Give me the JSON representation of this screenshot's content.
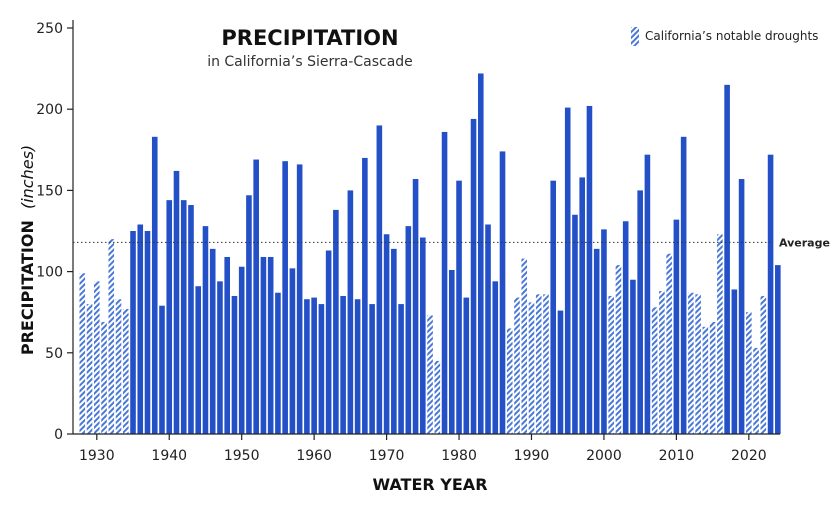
{
  "colors": {
    "bar": "#2450c7",
    "drought_stripe": "#4a78d6",
    "axis": "#222222",
    "average_line": "#333333"
  },
  "chart_data": {
    "type": "bar",
    "title": "PRECIPITATION",
    "subtitle": "in California’s Sierra-Cascade",
    "xlabel": "WATER YEAR",
    "ylabel": "PRECIPITATION",
    "ylabel_unit": "(inches)",
    "ylim": [
      0,
      250
    ],
    "yticks": [
      0,
      50,
      100,
      150,
      200,
      250
    ],
    "xticks": [
      1930,
      1940,
      1950,
      1960,
      1970,
      1980,
      1990,
      2000,
      2010,
      2020
    ],
    "average": 118,
    "average_label": "Average",
    "legend": {
      "label": "California’s notable droughts",
      "placement": "top-right"
    },
    "years": [
      1928,
      1929,
      1930,
      1931,
      1932,
      1933,
      1934,
      1935,
      1936,
      1937,
      1938,
      1939,
      1940,
      1941,
      1942,
      1943,
      1944,
      1945,
      1946,
      1947,
      1948,
      1949,
      1950,
      1951,
      1952,
      1953,
      1954,
      1955,
      1956,
      1957,
      1958,
      1959,
      1960,
      1961,
      1962,
      1963,
      1964,
      1965,
      1966,
      1967,
      1968,
      1969,
      1970,
      1971,
      1972,
      1973,
      1974,
      1975,
      1976,
      1977,
      1978,
      1979,
      1980,
      1981,
      1982,
      1983,
      1984,
      1985,
      1986,
      1987,
      1988,
      1989,
      1990,
      1991,
      1992,
      1993,
      1994,
      1995,
      1996,
      1997,
      1998,
      1999,
      2000,
      2001,
      2002,
      2003,
      2004,
      2005,
      2006,
      2007,
      2008,
      2009,
      2010,
      2011,
      2012,
      2013,
      2014,
      2015,
      2016,
      2017,
      2018,
      2019,
      2020,
      2021,
      2022,
      2023,
      2024
    ],
    "values": [
      99,
      80,
      94,
      69,
      120,
      83,
      77,
      125,
      129,
      125,
      183,
      79,
      144,
      162,
      144,
      141,
      91,
      128,
      114,
      94,
      109,
      85,
      103,
      147,
      169,
      109,
      109,
      87,
      168,
      102,
      166,
      83,
      84,
      80,
      113,
      138,
      85,
      150,
      83,
      170,
      80,
      190,
      123,
      114,
      80,
      128,
      157,
      121,
      73,
      45,
      186,
      101,
      156,
      84,
      194,
      222,
      129,
      94,
      174,
      65,
      84,
      108,
      81,
      86,
      86,
      156,
      76,
      201,
      135,
      158,
      202,
      114,
      126,
      85,
      104,
      131,
      95,
      150,
      172,
      78,
      88,
      111,
      132,
      183,
      87,
      86,
      66,
      69,
      123,
      215,
      89,
      157,
      75,
      53,
      85,
      172,
      104
    ],
    "drought": [
      1,
      1,
      1,
      1,
      1,
      1,
      1,
      0,
      0,
      0,
      0,
      0,
      0,
      0,
      0,
      0,
      0,
      0,
      0,
      0,
      0,
      0,
      0,
      0,
      0,
      0,
      0,
      0,
      0,
      0,
      0,
      0,
      0,
      0,
      0,
      0,
      0,
      0,
      0,
      0,
      0,
      0,
      0,
      0,
      0,
      0,
      0,
      0,
      1,
      1,
      0,
      0,
      0,
      0,
      0,
      0,
      0,
      0,
      0,
      1,
      1,
      1,
      1,
      1,
      1,
      0,
      0,
      0,
      0,
      0,
      0,
      0,
      0,
      1,
      1,
      0,
      0,
      0,
      0,
      1,
      1,
      1,
      0,
      0,
      1,
      1,
      1,
      1,
      1,
      0,
      0,
      0,
      1,
      1,
      1,
      0,
      0
    ]
  }
}
